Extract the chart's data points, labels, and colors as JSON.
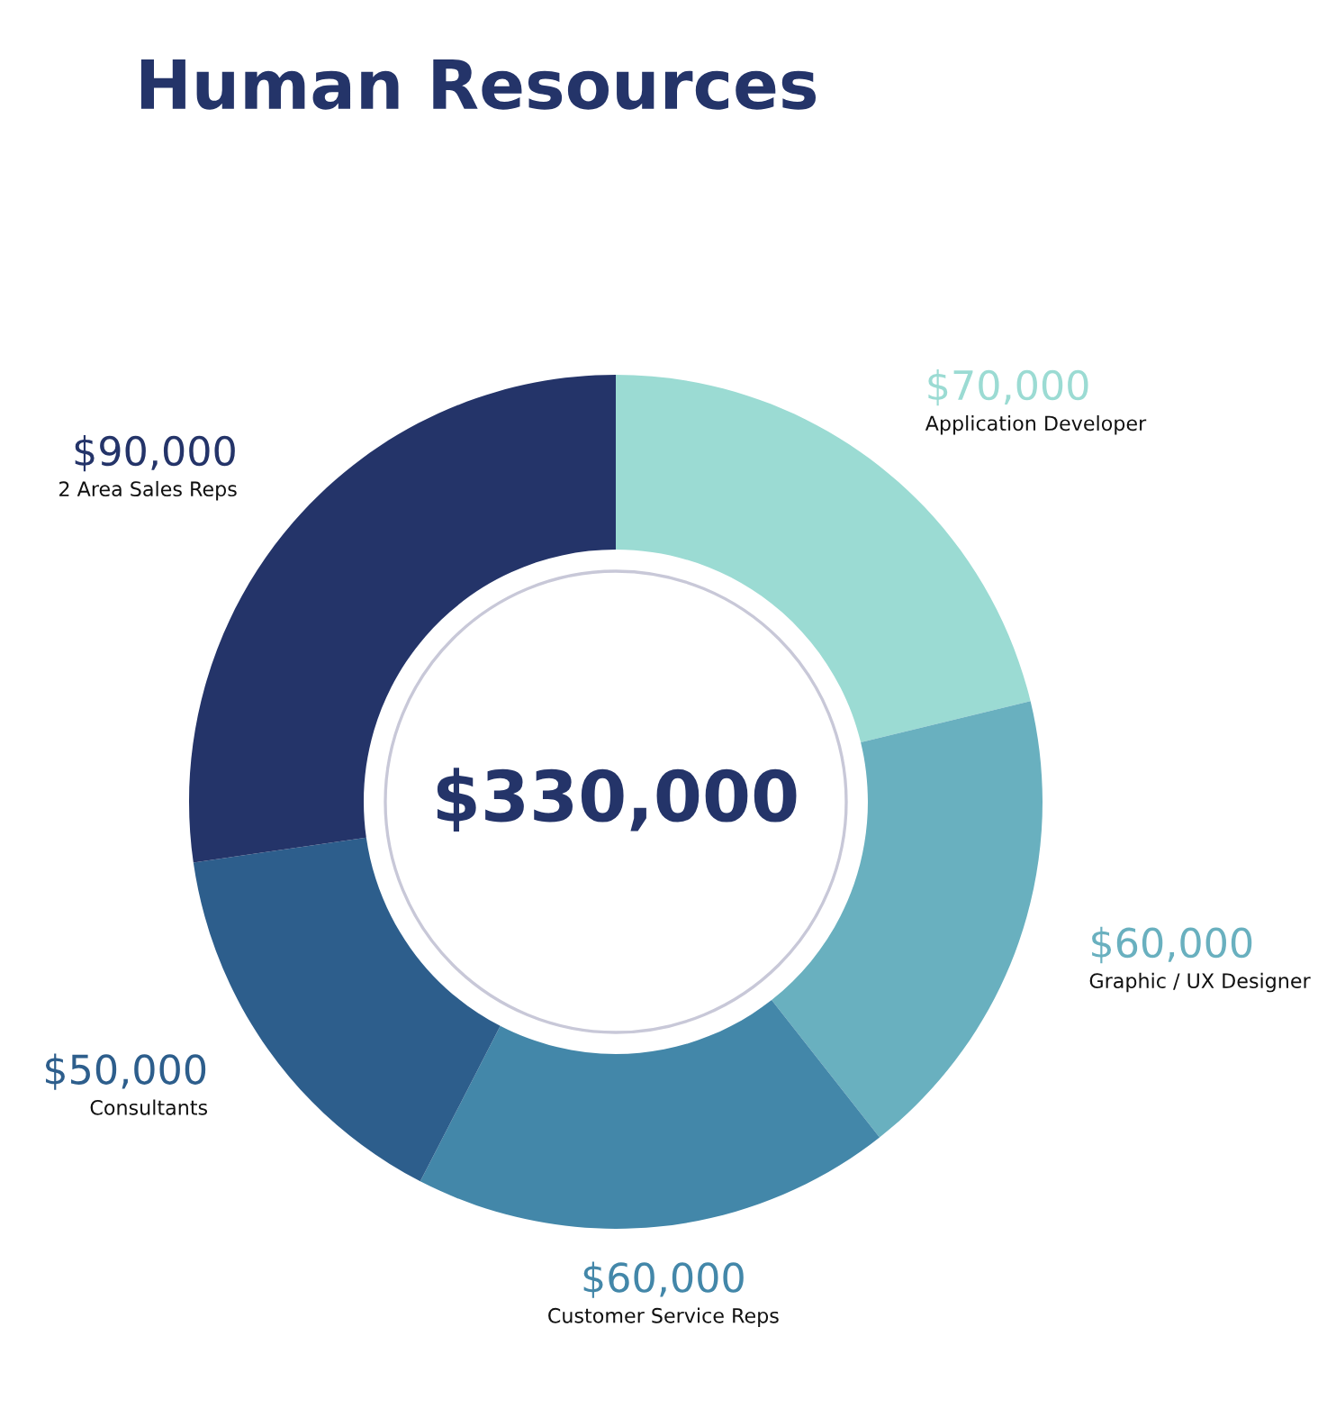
{
  "chart_data": {
    "type": "donut",
    "title": "Human Resources",
    "categories": [
      "Application Developer",
      "Graphic / UX Designer",
      "Customer Service Reps",
      "Consultants",
      "2 Area Sales Reps"
    ],
    "values": [
      70000,
      60000,
      60000,
      50000,
      90000
    ],
    "colors": [
      "#9bdbd3",
      "#69b0bf",
      "#4387a9",
      "#2d5e8c",
      "#243469"
    ],
    "value_labels": [
      "$70,000",
      "$60,000",
      "$60,000",
      "$50,000",
      "$90,000"
    ],
    "annotations": [
      "$330,000"
    ]
  }
}
